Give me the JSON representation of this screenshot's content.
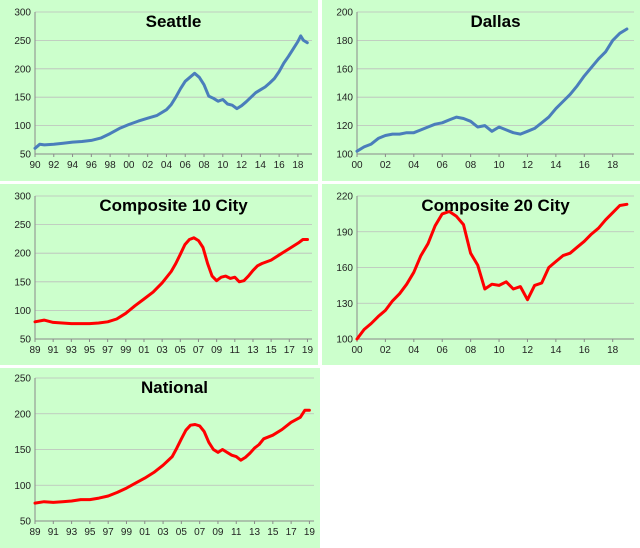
{
  "chart_data": [
    {
      "type": "line",
      "title": "Seattle",
      "color": "#4a7ebb",
      "xlim": [
        1990,
        2019.5
      ],
      "ylim": [
        50,
        300
      ],
      "yticks": [
        50,
        100,
        150,
        200,
        250,
        300
      ],
      "x_tick_labels": [
        "90",
        "92",
        "94",
        "96",
        "98",
        "00",
        "02",
        "04",
        "06",
        "08",
        "10",
        "12",
        "14",
        "16",
        "18"
      ],
      "x_tick_years": [
        1990,
        1992,
        1994,
        1996,
        1998,
        2000,
        2002,
        2004,
        2006,
        2008,
        2010,
        2012,
        2014,
        2016,
        2018
      ],
      "grid": true,
      "series": [
        {
          "x": [
            1990,
            1990.5,
            1991,
            1992,
            1993,
            1994,
            1995,
            1996,
            1997,
            1998,
            1999,
            2000,
            2001,
            2002,
            2003,
            2004,
            2004.5,
            2005,
            2005.5,
            2006,
            2006.5,
            2007,
            2007.5,
            2008,
            2008.5,
            2009,
            2009.5,
            2010,
            2010.5,
            2011,
            2011.5,
            2012,
            2012.5,
            2013,
            2013.5,
            2014,
            2014.5,
            2015,
            2015.5,
            2016,
            2016.5,
            2017,
            2017.5,
            2018,
            2018.3,
            2018.6,
            2019
          ],
          "y": [
            60,
            67,
            66,
            67,
            69,
            71,
            72,
            74,
            78,
            86,
            95,
            102,
            108,
            113,
            118,
            128,
            137,
            150,
            165,
            178,
            185,
            192,
            185,
            172,
            152,
            148,
            143,
            146,
            138,
            136,
            130,
            135,
            142,
            150,
            158,
            163,
            168,
            175,
            183,
            195,
            210,
            222,
            235,
            248,
            258,
            250,
            246
          ]
        }
      ]
    },
    {
      "type": "line",
      "title": "Dallas",
      "color": "#4a7ebb",
      "xlim": [
        2000,
        2019.5
      ],
      "ylim": [
        100,
        200
      ],
      "yticks": [
        100,
        120,
        140,
        160,
        180,
        200
      ],
      "x_tick_labels": [
        "00",
        "02",
        "04",
        "06",
        "08",
        "10",
        "12",
        "14",
        "16",
        "18"
      ],
      "x_tick_years": [
        2000,
        2002,
        2004,
        2006,
        2008,
        2010,
        2012,
        2014,
        2016,
        2018
      ],
      "grid": true,
      "series": [
        {
          "x": [
            2000,
            2000.5,
            2001,
            2001.5,
            2002,
            2002.5,
            2003,
            2003.5,
            2004,
            2004.5,
            2005,
            2005.5,
            2006,
            2006.5,
            2007,
            2007.5,
            2008,
            2008.5,
            2009,
            2009.5,
            2010,
            2010.5,
            2011,
            2011.5,
            2012,
            2012.5,
            2013,
            2013.5,
            2014,
            2014.5,
            2015,
            2015.5,
            2016,
            2016.5,
            2017,
            2017.5,
            2018,
            2018.5,
            2019
          ],
          "y": [
            102,
            105,
            107,
            111,
            113,
            114,
            114,
            115,
            115,
            117,
            119,
            121,
            122,
            124,
            126,
            125,
            123,
            119,
            120,
            116,
            119,
            117,
            115,
            114,
            116,
            118,
            122,
            126,
            132,
            137,
            142,
            148,
            155,
            161,
            167,
            172,
            180,
            185,
            188
          ]
        }
      ]
    },
    {
      "type": "line",
      "title": "Composite 10 City",
      "color": "#ff0000",
      "xlim": [
        1989,
        2019.5
      ],
      "ylim": [
        50,
        300
      ],
      "yticks": [
        50,
        100,
        150,
        200,
        250,
        300
      ],
      "x_tick_labels": [
        "89",
        "91",
        "93",
        "95",
        "97",
        "99",
        "01",
        "03",
        "05",
        "07",
        "09",
        "11",
        "13",
        "15",
        "17",
        "19"
      ],
      "x_tick_years": [
        1989,
        1991,
        1993,
        1995,
        1997,
        1999,
        2001,
        2003,
        2005,
        2007,
        2009,
        2011,
        2013,
        2015,
        2017,
        2019
      ],
      "grid": true,
      "series": [
        {
          "x": [
            1989,
            1990,
            1991,
            1992,
            1993,
            1994,
            1995,
            1996,
            1997,
            1998,
            1999,
            2000,
            2001,
            2002,
            2003,
            2004,
            2004.5,
            2005,
            2005.5,
            2006,
            2006.5,
            2007,
            2007.5,
            2008,
            2008.5,
            2009,
            2009.5,
            2010,
            2010.5,
            2011,
            2011.5,
            2012,
            2012.5,
            2013,
            2013.5,
            2014,
            2015,
            2016,
            2017,
            2018,
            2018.5,
            2019
          ],
          "y": [
            80,
            83,
            79,
            78,
            77,
            77,
            77,
            78,
            80,
            85,
            95,
            108,
            120,
            132,
            148,
            168,
            182,
            198,
            215,
            224,
            227,
            222,
            210,
            182,
            160,
            152,
            158,
            160,
            156,
            158,
            150,
            152,
            160,
            170,
            178,
            182,
            188,
            198,
            208,
            218,
            224,
            224
          ]
        }
      ]
    },
    {
      "type": "line",
      "title": "Composite 20 City",
      "color": "#ff0000",
      "xlim": [
        2000,
        2019.5
      ],
      "ylim": [
        100,
        220
      ],
      "yticks": [
        100,
        130,
        160,
        190,
        220
      ],
      "x_tick_labels": [
        "00",
        "02",
        "04",
        "06",
        "08",
        "10",
        "12",
        "14",
        "16",
        "18"
      ],
      "x_tick_years": [
        2000,
        2002,
        2004,
        2006,
        2008,
        2010,
        2012,
        2014,
        2016,
        2018
      ],
      "grid": true,
      "series": [
        {
          "x": [
            2000,
            2000.5,
            2001,
            2001.5,
            2002,
            2002.5,
            2003,
            2003.5,
            2004,
            2004.5,
            2005,
            2005.5,
            2006,
            2006.5,
            2007,
            2007.5,
            2008,
            2008.5,
            2009,
            2009.5,
            2010,
            2010.5,
            2011,
            2011.5,
            2012,
            2012.5,
            2013,
            2013.5,
            2014,
            2014.5,
            2015,
            2015.5,
            2016,
            2016.5,
            2017,
            2017.5,
            2018,
            2018.5,
            2019
          ],
          "y": [
            100,
            108,
            113,
            119,
            124,
            132,
            138,
            146,
            156,
            170,
            180,
            195,
            205,
            207,
            203,
            196,
            172,
            162,
            142,
            146,
            145,
            148,
            142,
            144,
            133,
            145,
            147,
            160,
            165,
            170,
            172,
            177,
            182,
            188,
            193,
            200,
            206,
            212,
            213
          ]
        }
      ]
    },
    {
      "type": "line",
      "title": "National",
      "color": "#ff0000",
      "xlim": [
        1989,
        2019.5
      ],
      "ylim": [
        50,
        250
      ],
      "yticks": [
        50,
        100,
        150,
        200,
        250
      ],
      "x_tick_labels": [
        "89",
        "91",
        "93",
        "95",
        "97",
        "99",
        "01",
        "03",
        "05",
        "07",
        "09",
        "11",
        "13",
        "15",
        "17",
        "19"
      ],
      "x_tick_years": [
        1989,
        1991,
        1993,
        1995,
        1997,
        1999,
        2001,
        2003,
        2005,
        2007,
        2009,
        2011,
        2013,
        2015,
        2017,
        2019
      ],
      "grid": true,
      "series": [
        {
          "x": [
            1989,
            1990,
            1991,
            1992,
            1993,
            1994,
            1995,
            1996,
            1997,
            1998,
            1999,
            2000,
            2001,
            2002,
            2003,
            2004,
            2004.5,
            2005,
            2005.5,
            2006,
            2006.5,
            2007,
            2007.5,
            2008,
            2008.5,
            2009,
            2009.5,
            2010,
            2010.5,
            2011,
            2011.5,
            2012,
            2012.5,
            2013,
            2013.5,
            2014,
            2015,
            2016,
            2017,
            2018,
            2018.5,
            2019
          ],
          "y": [
            75,
            77,
            76,
            77,
            78,
            80,
            80,
            82,
            85,
            90,
            96,
            103,
            110,
            118,
            128,
            140,
            152,
            165,
            177,
            184,
            185,
            183,
            175,
            160,
            150,
            146,
            150,
            146,
            142,
            140,
            135,
            139,
            145,
            152,
            157,
            165,
            170,
            178,
            188,
            195,
            205,
            205
          ]
        }
      ]
    }
  ]
}
